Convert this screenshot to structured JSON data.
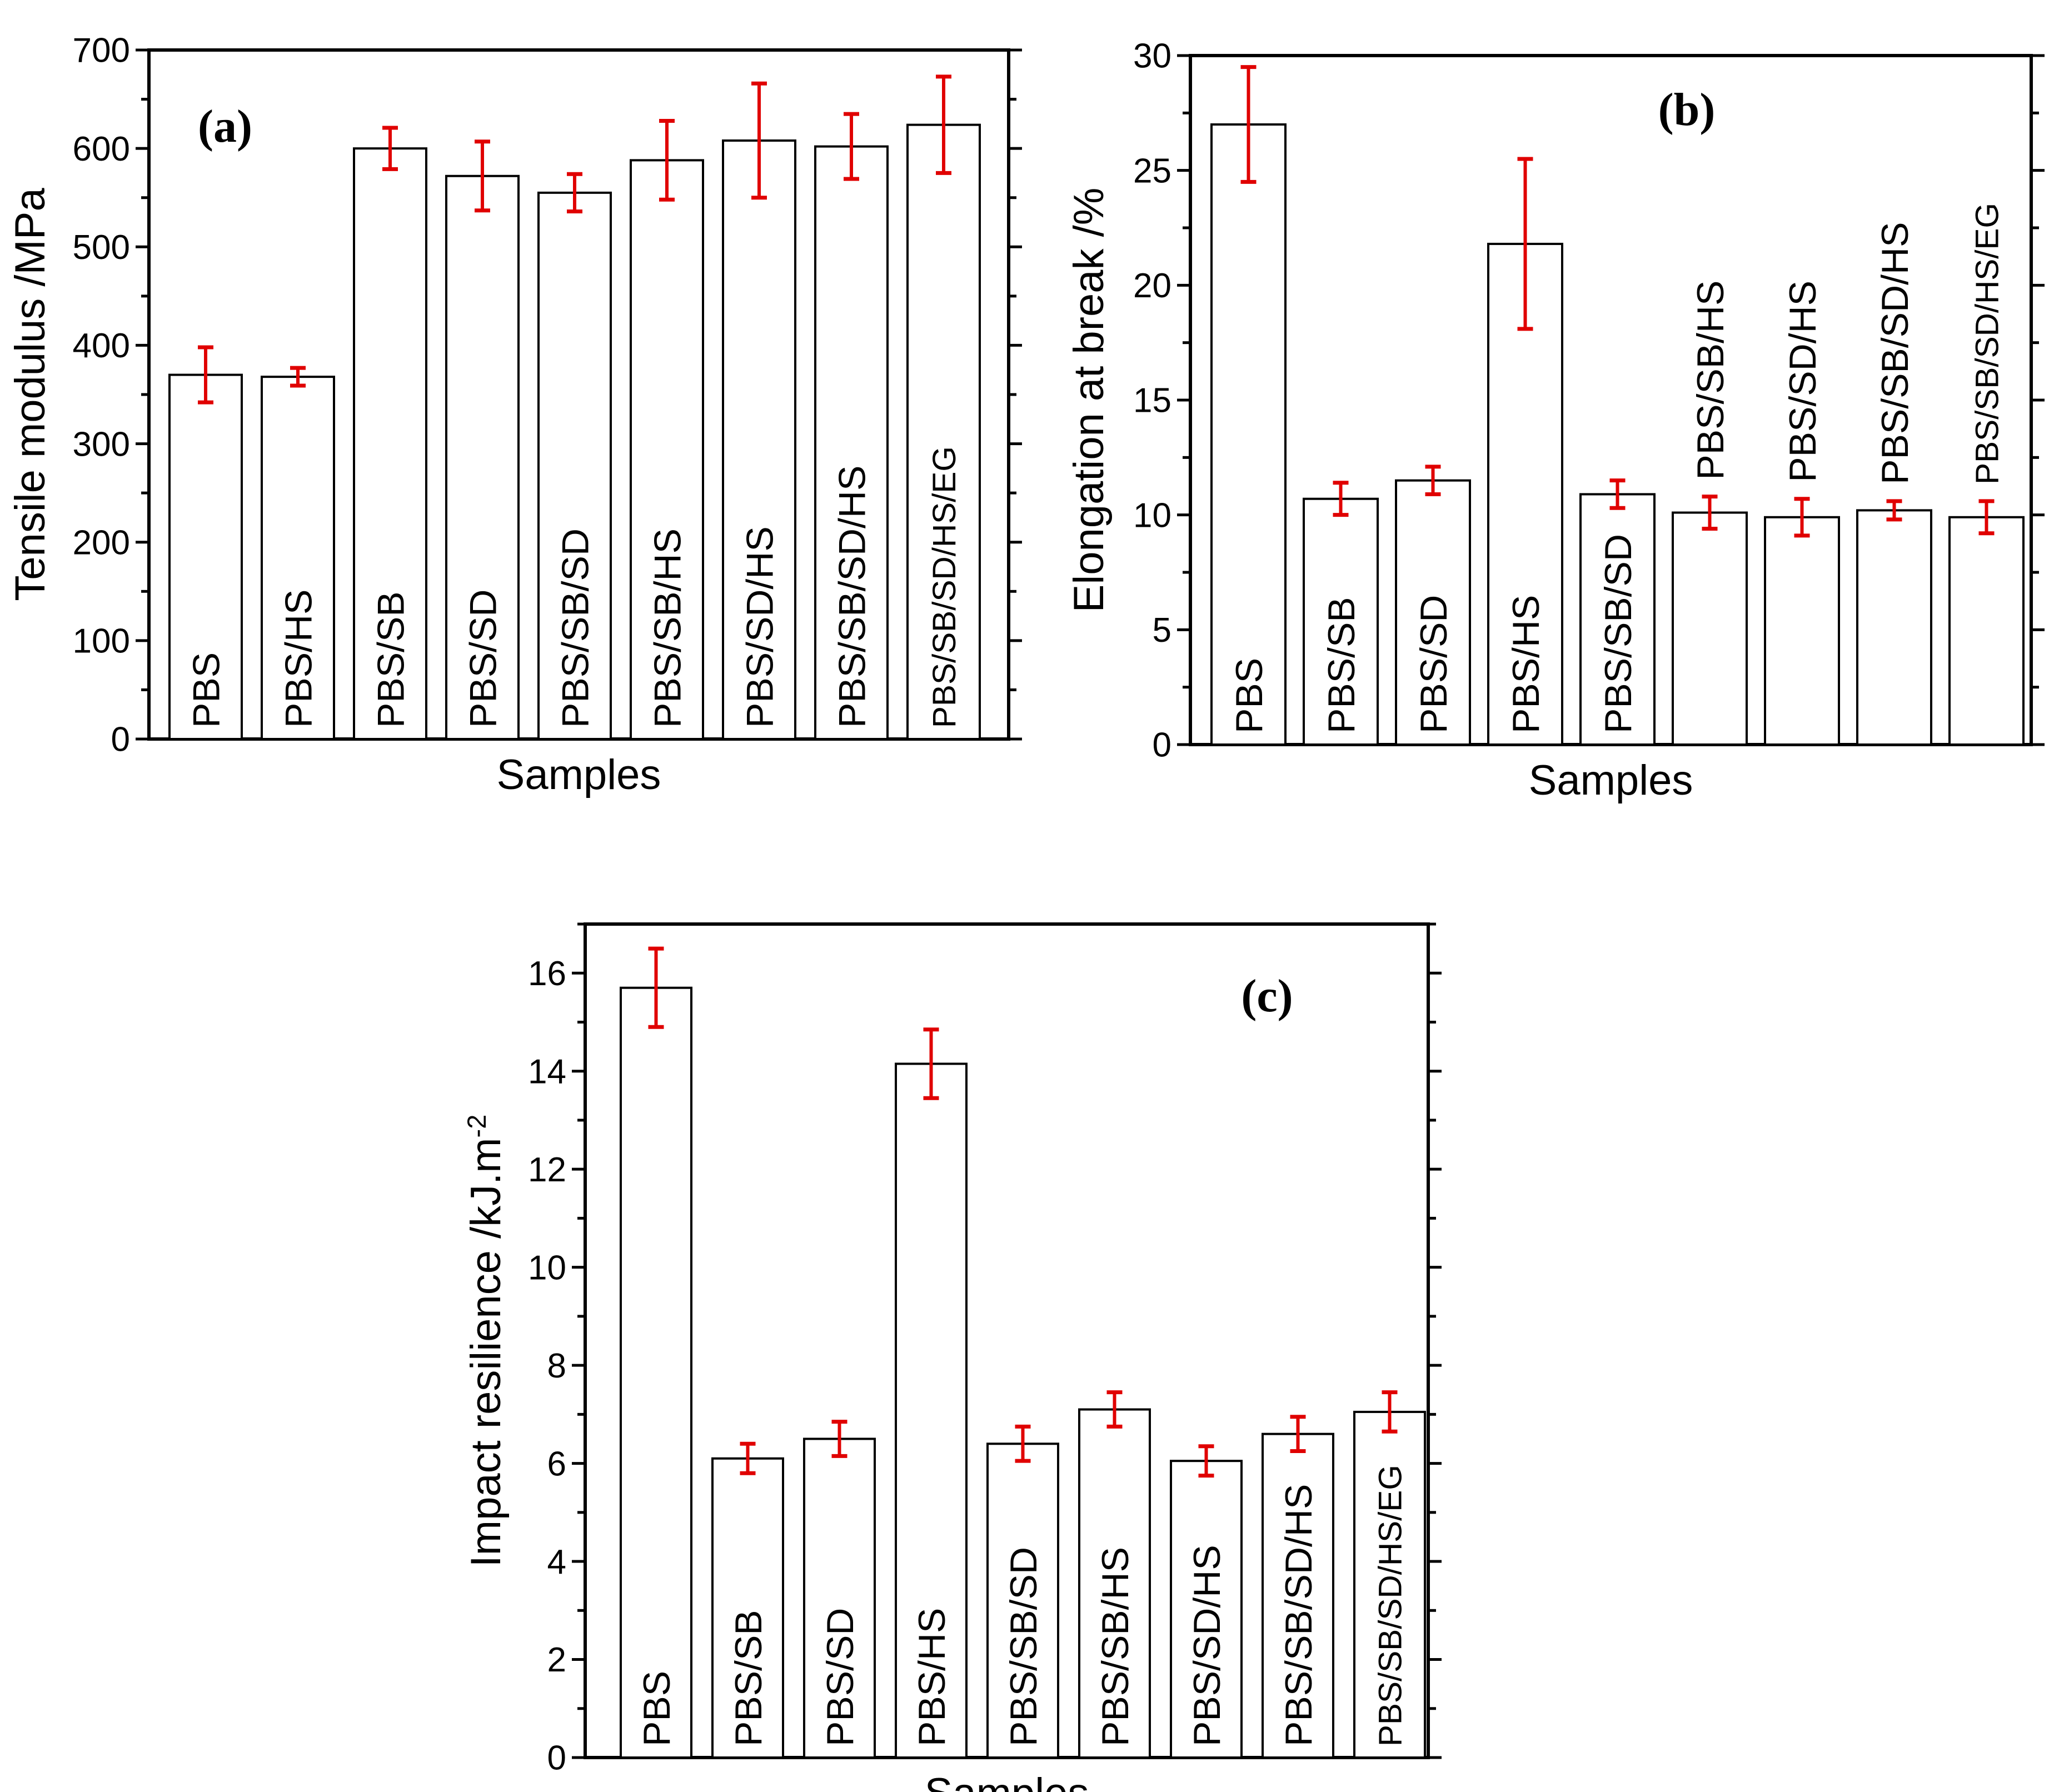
{
  "chart_data": [
    {
      "type": "bar",
      "panel_label": "(a)",
      "xlabel": "Samples",
      "ylabel": "Tensile modulus /MPa",
      "ylim": [
        0,
        700
      ],
      "yticks": [
        "0",
        "100",
        "200",
        "300",
        "400",
        "500",
        "600",
        "700"
      ],
      "categories": [
        "PBS",
        "PBS/HS",
        "PBS/SB",
        "PBS/SD",
        "PBS/SB/SD",
        "PBS/SB/HS",
        "PBS/SD/HS",
        "PBS/SB/SD/HS",
        "PBS/SB/SD/HS/EG"
      ],
      "values": [
        370,
        368,
        600,
        572,
        555,
        588,
        608,
        602,
        624
      ],
      "errors": [
        28,
        9,
        21,
        35,
        19,
        40,
        58,
        33,
        49
      ],
      "grid": false
    },
    {
      "type": "bar",
      "panel_label": "(b)",
      "xlabel": "Samples",
      "ylabel": "Elongation at break /%",
      "ylim": [
        0,
        30
      ],
      "yticks": [
        "0",
        "5",
        "10",
        "15",
        "20",
        "25",
        "30"
      ],
      "categories": [
        "PBS",
        "PBS/SB",
        "PBS/SD",
        "PBS/HS",
        "PBS/SB/SD",
        "PBS/SB/HS",
        "PBS/SD/HS",
        "PBS/SB/SD/HS",
        "PBS/SB/SD/HS/EG"
      ],
      "values": [
        27.0,
        10.7,
        11.5,
        21.8,
        10.9,
        10.1,
        9.9,
        10.2,
        9.9
      ],
      "errors": [
        2.5,
        0.7,
        0.6,
        3.7,
        0.6,
        0.7,
        0.8,
        0.4,
        0.7
      ],
      "grid": false
    },
    {
      "type": "bar",
      "panel_label": "(c)",
      "xlabel": "Samples",
      "ylabel": "Impact resilience /kJ.m",
      "ylabel_sup": "-2",
      "ylim": [
        0,
        17
      ],
      "yticks": [
        "0",
        "2",
        "4",
        "6",
        "8",
        "10",
        "12",
        "14",
        "16"
      ],
      "categories": [
        "PBS",
        "PBS/SB",
        "PBS/SD",
        "PBS/HS",
        "PBS/SB/SD",
        "PBS/SB/HS",
        "PBS/SD/HS",
        "PBS/SB/SD/HS",
        "PBS/SB/SD/HS/EG"
      ],
      "values": [
        15.7,
        6.1,
        6.5,
        14.15,
        6.4,
        7.1,
        6.05,
        6.6,
        7.05
      ],
      "errors": [
        0.8,
        0.3,
        0.35,
        0.7,
        0.35,
        0.35,
        0.3,
        0.35,
        0.4
      ],
      "grid": false
    }
  ],
  "colors": {
    "bar_fill": "#ffffff",
    "bar_stroke": "#000000",
    "error_bar": "#e00000",
    "axis": "#000000"
  }
}
